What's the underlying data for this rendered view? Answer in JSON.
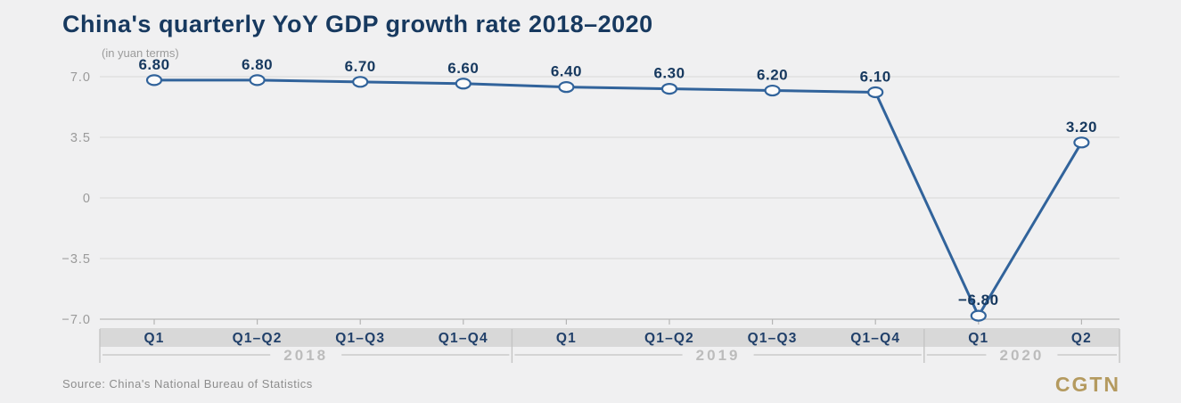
{
  "header": {
    "title": "China's quarterly YoY GDP growth rate 2018–2020",
    "subtitle": "(in yuan terms)"
  },
  "footer": {
    "source": "Source: China's National Bureau of Statistics",
    "logo": "CGTN"
  },
  "colors": {
    "background": "#f0f0f1",
    "title": "#17395f",
    "line": "#31639b",
    "marker_fill": "#fbfbfb",
    "data_label": "#17395f",
    "y_tick_label": "#9a9a9a",
    "category_label": "#21406a",
    "category_band": "#d8d8d8",
    "year_label": "#bcbcbc",
    "year_line": "#c4c4c4",
    "gridline": "#dcdcdd",
    "axis_line": "#c2c2c2",
    "tick": "#b5b5b5",
    "source_text": "#8d8d8d",
    "logo_color": "#b49a5f"
  },
  "chart_data": {
    "type": "line",
    "title": "China's quarterly YoY GDP growth rate 2018–2020",
    "subtitle": "(in yuan terms)",
    "categories": [
      "Q1",
      "Q1–Q2",
      "Q1–Q3",
      "Q1–Q4",
      "Q1",
      "Q1–Q2",
      "Q1–Q3",
      "Q1–Q4",
      "Q1",
      "Q2"
    ],
    "values": [
      6.8,
      6.8,
      6.7,
      6.6,
      6.4,
      6.3,
      6.2,
      6.1,
      -6.8,
      3.2
    ],
    "data_labels": [
      "6.80",
      "6.80",
      "6.70",
      "6.60",
      "6.40",
      "6.30",
      "6.20",
      "6.10",
      "−6.80",
      "3.20"
    ],
    "year_groups": [
      {
        "label": "2018",
        "span": 4
      },
      {
        "label": "2019",
        "span": 4
      },
      {
        "label": "2020",
        "span": 2
      }
    ],
    "y_ticks": [
      7.0,
      3.5,
      0,
      -3.5,
      -7.0
    ],
    "y_tick_labels": [
      "7.0",
      "3.5",
      "0",
      "−3.5",
      "−7.0"
    ],
    "ylim": [
      -7.0,
      7.0
    ],
    "xlabel": "",
    "ylabel": "",
    "grid": true,
    "legend": false,
    "marker": "open-circle"
  }
}
